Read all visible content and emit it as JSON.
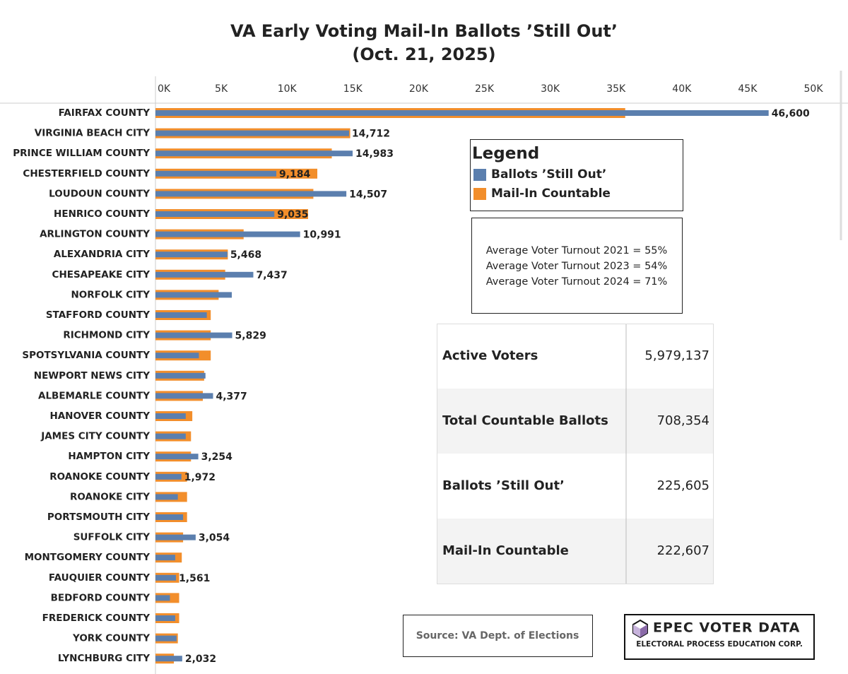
{
  "chart_data": {
    "type": "bar",
    "orientation": "horizontal",
    "title": "VA Early Voting Mail-In Ballots ’Still Out’",
    "subtitle": "(Oct. 21, 2025)",
    "categories": [
      "FAIRFAX COUNTY",
      "VIRGINIA BEACH CITY",
      "PRINCE WILLIAM COUNTY",
      "CHESTERFIELD COUNTY",
      "LOUDOUN COUNTY",
      "HENRICO COUNTY",
      "ARLINGTON COUNTY",
      "ALEXANDRIA CITY",
      "CHESAPEAKE CITY",
      "NORFOLK CITY",
      "STAFFORD COUNTY",
      "RICHMOND CITY",
      "SPOTSYLVANIA COUNTY",
      "NEWPORT NEWS CITY",
      "ALBEMARLE COUNTY",
      "HANOVER COUNTY",
      "JAMES CITY COUNTY",
      "HAMPTON CITY",
      "ROANOKE COUNTY",
      "ROANOKE CITY",
      "PORTSMOUTH CITY",
      "SUFFOLK CITY",
      "MONTGOMERY COUNTY",
      "FAUQUIER COUNTY",
      "BEDFORD COUNTY",
      "FREDERICK COUNTY",
      "YORK COUNTY",
      "LYNCHBURG CITY"
    ],
    "series": [
      {
        "name": "Ballots ’Still Out’",
        "color": "#5b7fae",
        "values": [
          46600,
          14712,
          14983,
          9184,
          14507,
          9035,
          10991,
          5468,
          7437,
          5800,
          3900,
          5829,
          3300,
          3800,
          4377,
          2300,
          2300,
          3254,
          1972,
          1700,
          2100,
          3054,
          1500,
          1561,
          1100,
          1500,
          1600,
          2032
        ],
        "value_labels": [
          "46,600",
          "14,712",
          "14,983",
          "9,184",
          "14,507",
          "9,035",
          "10,991",
          "5,468",
          "7,437",
          null,
          null,
          "5,829",
          null,
          null,
          "4,377",
          null,
          null,
          "3,254",
          "1,972",
          null,
          null,
          "3,054",
          null,
          "1,561",
          null,
          null,
          null,
          "2,032"
        ]
      },
      {
        "name": "Mail-In Countable",
        "color": "#f28e2b",
        "values": [
          35700,
          14800,
          13400,
          12300,
          12000,
          11600,
          6700,
          5500,
          5300,
          4800,
          4200,
          4200,
          4200,
          3700,
          3600,
          2800,
          2700,
          2700,
          2400,
          2400,
          2400,
          2100,
          2000,
          1800,
          1800,
          1800,
          1700,
          1400
        ]
      }
    ],
    "xlim": [
      0,
      50000
    ],
    "xticks": [
      {
        "value": 0,
        "label": "0K"
      },
      {
        "value": 5000,
        "label": "5K"
      },
      {
        "value": 10000,
        "label": "10K"
      },
      {
        "value": 15000,
        "label": "15K"
      },
      {
        "value": 20000,
        "label": "20K"
      },
      {
        "value": 25000,
        "label": "25K"
      },
      {
        "value": 30000,
        "label": "30K"
      },
      {
        "value": 35000,
        "label": "35K"
      },
      {
        "value": 40000,
        "label": "40K"
      },
      {
        "value": 45000,
        "label": "45K"
      },
      {
        "value": 50000,
        "label": "50K"
      }
    ],
    "legend_title": "Legend"
  },
  "notes": [
    "Average Voter Turnout 2021 = 55%",
    "Average Voter Turnout 2023 = 54%",
    "Average Voter Turnout 2024 = 71%"
  ],
  "summary_table": {
    "rows": [
      [
        "Active Voters",
        "5,979,137"
      ],
      [
        "Total Countable Ballots",
        "708,354"
      ],
      [
        "Ballots ’Still Out’",
        "225,605"
      ],
      [
        "Mail-In Countable",
        "222,607"
      ]
    ]
  },
  "source": "Source: VA Dept. of Elections",
  "logo": {
    "title": "EPEC VOTER DATA",
    "subtitle": "ELECTORAL PROCESS EDUCATION CORP."
  }
}
